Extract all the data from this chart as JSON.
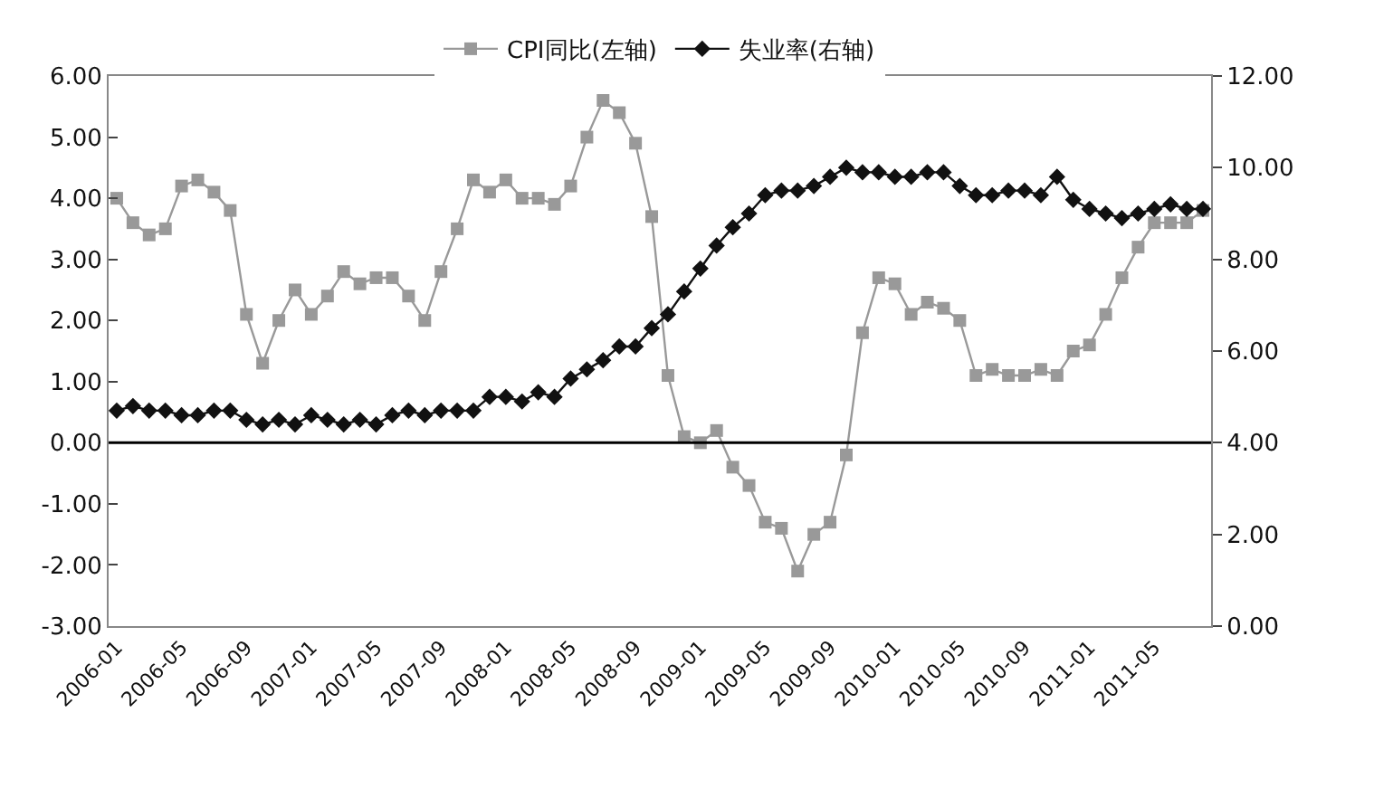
{
  "chart_data": {
    "type": "line",
    "categories": [
      "2006-01",
      null,
      null,
      null,
      "2006-05",
      null,
      null,
      null,
      "2006-09",
      null,
      null,
      null,
      "2007-01",
      null,
      null,
      null,
      "2007-05",
      null,
      null,
      null,
      "2007-09",
      null,
      null,
      null,
      "2008-01",
      null,
      null,
      null,
      "2008-05",
      null,
      null,
      null,
      "2008-09",
      null,
      null,
      null,
      "2009-01",
      null,
      null,
      null,
      "2009-05",
      null,
      null,
      null,
      "2009-09",
      null,
      null,
      null,
      "2010-01",
      null,
      null,
      null,
      "2010-05",
      null,
      null,
      null,
      "2010-09",
      null,
      null,
      null,
      "2011-01",
      null,
      null,
      null,
      "2011-05",
      null,
      null,
      null
    ],
    "series": [
      {
        "name": "CPI同比(左轴)",
        "color": "#999999",
        "marker": "square",
        "values": [
          4.0,
          3.6,
          3.4,
          3.5,
          4.2,
          4.3,
          4.1,
          3.8,
          2.1,
          1.3,
          2.0,
          2.5,
          2.1,
          2.4,
          2.8,
          2.6,
          2.7,
          2.7,
          2.4,
          2.0,
          2.8,
          3.5,
          4.3,
          4.1,
          4.3,
          4.0,
          4.0,
          3.9,
          4.2,
          5.0,
          5.6,
          5.4,
          4.9,
          3.7,
          1.1,
          0.1,
          0.0,
          0.2,
          -0.4,
          -0.7,
          -1.3,
          -1.4,
          -2.1,
          -1.5,
          -1.3,
          -0.2,
          1.8,
          2.7,
          2.6,
          2.1,
          2.3,
          2.2,
          2.0,
          1.1,
          1.2,
          1.1,
          1.1,
          1.2,
          1.1,
          1.5,
          1.6,
          2.1,
          2.7,
          3.2,
          3.6,
          3.6,
          3.6,
          3.8
        ]
      },
      {
        "name": "失业率(右轴)",
        "color": "#111111",
        "marker": "diamond",
        "axis": "y2",
        "values": [
          4.7,
          4.8,
          4.7,
          4.7,
          4.6,
          4.6,
          4.7,
          4.7,
          4.5,
          4.4,
          4.5,
          4.4,
          4.6,
          4.5,
          4.4,
          4.5,
          4.4,
          4.6,
          4.7,
          4.6,
          4.7,
          4.7,
          4.7,
          5.0,
          5.0,
          4.9,
          5.1,
          5.0,
          5.4,
          5.6,
          5.8,
          6.1,
          6.1,
          6.5,
          6.8,
          7.3,
          7.8,
          8.3,
          8.7,
          9.0,
          9.4,
          9.5,
          9.5,
          9.6,
          9.8,
          10.0,
          9.9,
          9.9,
          9.8,
          9.8,
          9.9,
          9.9,
          9.6,
          9.4,
          9.4,
          9.5,
          9.5,
          9.4,
          9.8,
          9.3,
          9.1,
          9.0,
          8.9,
          9.0,
          9.1,
          9.2,
          9.1,
          9.1
        ]
      }
    ],
    "ylim": [
      -3,
      6
    ],
    "yticks": [
      {
        "value": -3,
        "label": "-3.00"
      },
      {
        "value": -2,
        "label": "-2.00"
      },
      {
        "value": -1,
        "label": "-1.00"
      },
      {
        "value": 0,
        "label": "0.00"
      },
      {
        "value": 1,
        "label": "1.00"
      },
      {
        "value": 2,
        "label": "2.00"
      },
      {
        "value": 3,
        "label": "3.00"
      },
      {
        "value": 4,
        "label": "4.00"
      },
      {
        "value": 5,
        "label": "5.00"
      },
      {
        "value": 6,
        "label": "6.00"
      }
    ],
    "y2lim": [
      0,
      12
    ],
    "y2ticks": [
      {
        "value": 0,
        "label": "0.00"
      },
      {
        "value": 2,
        "label": "2.00"
      },
      {
        "value": 4,
        "label": "4.00"
      },
      {
        "value": 6,
        "label": "6.00"
      },
      {
        "value": 8,
        "label": "8.00"
      },
      {
        "value": 10,
        "label": "10.00"
      },
      {
        "value": 12,
        "label": "12.00"
      }
    ],
    "ref_lines": [
      {
        "axis": "y",
        "value": 0,
        "color": "#000000"
      }
    ],
    "legend": "top",
    "line_style": "solid"
  }
}
